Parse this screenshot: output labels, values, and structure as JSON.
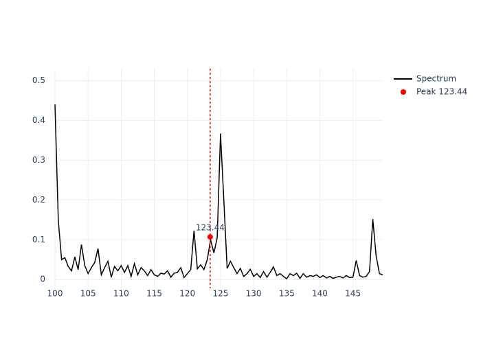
{
  "chart_data": {
    "type": "line",
    "xlim": [
      100,
      149.5
    ],
    "ylim": [
      -0.022,
      0.53
    ],
    "xticks": [
      100,
      105,
      110,
      115,
      120,
      125,
      130,
      135,
      140,
      145
    ],
    "yticks": [
      0,
      0.1,
      0.2,
      0.3,
      0.4,
      0.5
    ],
    "grid": true,
    "legend": "top-right",
    "series": [
      {
        "name": "Spectrum",
        "color": "#000000",
        "mode": "lines",
        "x": [
          100,
          100.5,
          101,
          101.5,
          102,
          102.5,
          103,
          103.5,
          104,
          104.5,
          105,
          105.5,
          106,
          106.5,
          107,
          107.5,
          108,
          108.5,
          109,
          109.5,
          110,
          110.5,
          111,
          111.5,
          112,
          112.5,
          113,
          113.5,
          114,
          114.5,
          115,
          115.5,
          116,
          116.5,
          117,
          117.5,
          118,
          118.5,
          119,
          119.5,
          120,
          120.5,
          121,
          121.5,
          122,
          122.5,
          123,
          123.5,
          124,
          124.5,
          125,
          125.5,
          126,
          126.5,
          127,
          127.5,
          128,
          128.5,
          129,
          129.5,
          130,
          130.5,
          131,
          131.5,
          132,
          132.5,
          133,
          133.5,
          134,
          134.5,
          135,
          135.5,
          136,
          136.5,
          137,
          137.5,
          138,
          138.5,
          139,
          139.5,
          140,
          140.5,
          141,
          141.5,
          142,
          142.5,
          143,
          143.5,
          144,
          144.5,
          145,
          145.5,
          146,
          146.5,
          147,
          147.5,
          148,
          148.5,
          149,
          149.5
        ],
        "values": [
          0.44,
          0.15,
          0.05,
          0.055,
          0.033,
          0.022,
          0.057,
          0.025,
          0.088,
          0.035,
          0.015,
          0.03,
          0.043,
          0.078,
          0.012,
          0.03,
          0.046,
          0.006,
          0.033,
          0.022,
          0.035,
          0.018,
          0.035,
          0.008,
          0.04,
          0.012,
          0.03,
          0.022,
          0.01,
          0.025,
          0.012,
          0.008,
          0.016,
          0.014,
          0.022,
          0.006,
          0.016,
          0.018,
          0.03,
          0.005,
          0.015,
          0.025,
          0.123,
          0.027,
          0.037,
          0.025,
          0.05,
          0.1,
          0.067,
          0.105,
          0.367,
          0.2,
          0.028,
          0.046,
          0.03,
          0.015,
          0.028,
          0.008,
          0.015,
          0.026,
          0.008,
          0.015,
          0.005,
          0.02,
          0.006,
          0.018,
          0.032,
          0.01,
          0.015,
          0.008,
          0.002,
          0.015,
          0.01,
          0.016,
          0.003,
          0.015,
          0.006,
          0.01,
          0.008,
          0.012,
          0.005,
          0.01,
          0.004,
          0.008,
          0.003,
          0.006,
          0.008,
          0.004,
          0.01,
          0.005,
          0.006,
          0.048,
          0.01,
          0.006,
          0.008,
          0.02,
          0.152,
          0.06,
          0.015,
          0.012
        ]
      },
      {
        "name": "Peak 123.44",
        "color": "#ff0000",
        "mode": "markers",
        "x": [
          123.44
        ],
        "values": [
          0.107
        ]
      }
    ],
    "annotations": [
      {
        "text": "123.44"
      }
    ]
  }
}
